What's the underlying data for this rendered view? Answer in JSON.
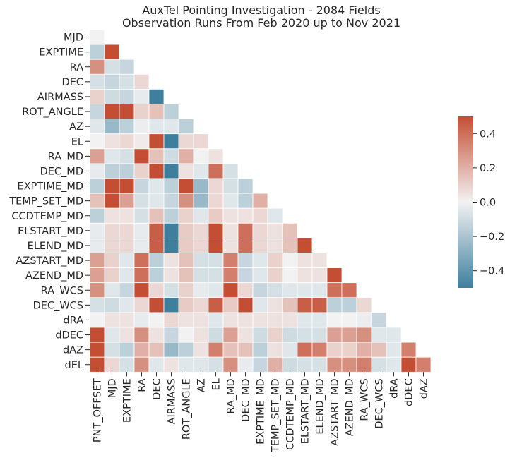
{
  "chart_data": {
    "type": "heatmap",
    "title": "AuxTel Pointing Investigation - 2084 Fields",
    "subtitle": "Observation Runs From Feb 2020 up to Nov 2021",
    "mask": "upper-triangle",
    "grid": false,
    "legend": "colorbar-right",
    "colormap": {
      "low": "#3f7f9e",
      "mid": "#f2f2f2",
      "high": "#c44e34"
    },
    "vmin": -0.5,
    "vmax": 0.5,
    "colorbar_ticks": [
      -0.4,
      -0.2,
      0.0,
      0.2,
      0.4
    ],
    "colorbar_tick_labels": [
      "−0.4",
      "−0.2",
      "0.0",
      "0.2",
      "0.4"
    ],
    "row_labels": [
      "MJD",
      "EXPTIME",
      "RA",
      "DEC",
      "AIRMASS",
      "ROT_ANGLE",
      "AZ",
      "EL",
      "RA_MD",
      "DEC_MD",
      "EXPTIME_MD",
      "TEMP_SET_MD",
      "CCDTEMP_MD",
      "ELSTART_MD",
      "ELEND_MD",
      "AZSTART_MD",
      "AZEND_MD",
      "RA_WCS",
      "DEC_WCS",
      "dRA",
      "dDEC",
      "dAZ",
      "dEL"
    ],
    "col_labels": [
      "PNT_OFFSET",
      "MJD",
      "EXPTIME",
      "RA",
      "DEC",
      "AIRMASS",
      "ROT_ANGLE",
      "AZ",
      "EL",
      "RA_MD",
      "DEC_MD",
      "EXPTIME_MD",
      "TEMP_SET_MD",
      "CCDTEMP_MD",
      "ELSTART_MD",
      "ELEND_MD",
      "AZSTART_MD",
      "AZEND_MD",
      "RA_WCS",
      "DEC_WCS",
      "dRA",
      "dDEC",
      "dAZ"
    ],
    "values": [
      [
        0.0
      ],
      [
        -0.15,
        0.5
      ],
      [
        0.3,
        -0.08,
        -0.12
      ],
      [
        -0.08,
        -0.12,
        -0.08,
        0.08
      ],
      [
        0.1,
        -0.1,
        -0.12,
        -0.03,
        -0.6
      ],
      [
        -0.12,
        0.5,
        0.5,
        0.1,
        0.15,
        -0.15
      ],
      [
        -0.05,
        -0.25,
        -0.15,
        -0.02,
        -0.05,
        -0.05,
        -0.15
      ],
      [
        0.0,
        0.05,
        0.08,
        0.02,
        0.5,
        -0.55,
        0.08,
        0.08
      ],
      [
        0.25,
        -0.05,
        -0.08,
        0.5,
        0.15,
        -0.1,
        0.2,
        0.0,
        0.05
      ],
      [
        -0.03,
        -0.15,
        -0.15,
        0.1,
        0.5,
        -0.5,
        0.05,
        -0.05,
        0.4,
        -0.08
      ],
      [
        -0.15,
        0.5,
        0.5,
        -0.12,
        -0.05,
        -0.15,
        0.5,
        -0.25,
        0.08,
        -0.08,
        -0.15
      ],
      [
        0.15,
        0.5,
        0.25,
        -0.08,
        -0.05,
        -0.12,
        0.3,
        -0.25,
        0.08,
        -0.05,
        -0.15,
        0.2
      ],
      [
        -0.15,
        0.05,
        0.05,
        -0.08,
        0.15,
        -0.15,
        0.1,
        -0.05,
        0.12,
        0.05,
        0.05,
        0.08,
        -0.05
      ],
      [
        -0.03,
        0.08,
        0.08,
        -0.03,
        0.45,
        -0.5,
        0.12,
        0.08,
        0.5,
        0.05,
        0.4,
        0.08,
        0.05,
        0.15
      ],
      [
        -0.03,
        0.08,
        0.08,
        -0.03,
        0.45,
        -0.5,
        0.12,
        0.08,
        0.5,
        0.05,
        0.4,
        0.08,
        0.05,
        0.15,
        0.5
      ],
      [
        0.25,
        0.1,
        -0.05,
        0.4,
        -0.15,
        0.05,
        0.15,
        -0.08,
        -0.08,
        0.35,
        -0.12,
        -0.05,
        0.1,
        0.0,
        0.05,
        0.05
      ],
      [
        0.25,
        0.1,
        -0.05,
        0.4,
        -0.15,
        0.05,
        0.15,
        -0.08,
        -0.08,
        0.35,
        -0.12,
        -0.05,
        0.1,
        0.0,
        0.05,
        0.05,
        0.5
      ],
      [
        0.3,
        -0.05,
        -0.12,
        0.5,
        0.08,
        -0.08,
        0.1,
        -0.03,
        -0.05,
        0.5,
        0.08,
        -0.12,
        -0.08,
        -0.05,
        -0.05,
        -0.05,
        0.4,
        0.4
      ],
      [
        -0.08,
        -0.1,
        -0.05,
        0.08,
        0.5,
        -0.55,
        0.12,
        0.08,
        0.45,
        0.12,
        0.5,
        -0.05,
        0.05,
        0.15,
        0.45,
        0.45,
        -0.15,
        -0.15,
        0.08
      ],
      [
        0.0,
        0.05,
        0.05,
        -0.03,
        0.0,
        0.08,
        0.05,
        0.05,
        -0.05,
        0.05,
        0.05,
        0.05,
        0.05,
        0.05,
        -0.05,
        -0.05,
        0.0,
        0.0,
        -0.02,
        -0.12
      ],
      [
        0.5,
        -0.05,
        0.05,
        0.3,
        0.05,
        -0.12,
        0.0,
        0.05,
        -0.1,
        0.25,
        0.05,
        -0.1,
        0.1,
        -0.1,
        -0.08,
        -0.08,
        0.25,
        0.25,
        0.3,
        -0.05,
        -0.05
      ],
      [
        0.5,
        -0.08,
        -0.15,
        0.2,
        0.15,
        -0.25,
        -0.15,
        0.05,
        0.35,
        0.15,
        0.15,
        -0.15,
        0.05,
        -0.05,
        0.4,
        0.35,
        0.1,
        0.1,
        0.2,
        0.15,
        -0.05,
        0.35
      ],
      [
        0.5,
        0.08,
        -0.08,
        0.3,
        -0.05,
        0.05,
        -0.05,
        -0.05,
        -0.08,
        0.3,
        -0.03,
        -0.12,
        0.2,
        -0.1,
        -0.08,
        -0.08,
        0.3,
        0.3,
        0.35,
        -0.08,
        -0.05,
        0.5,
        0.35
      ]
    ]
  }
}
